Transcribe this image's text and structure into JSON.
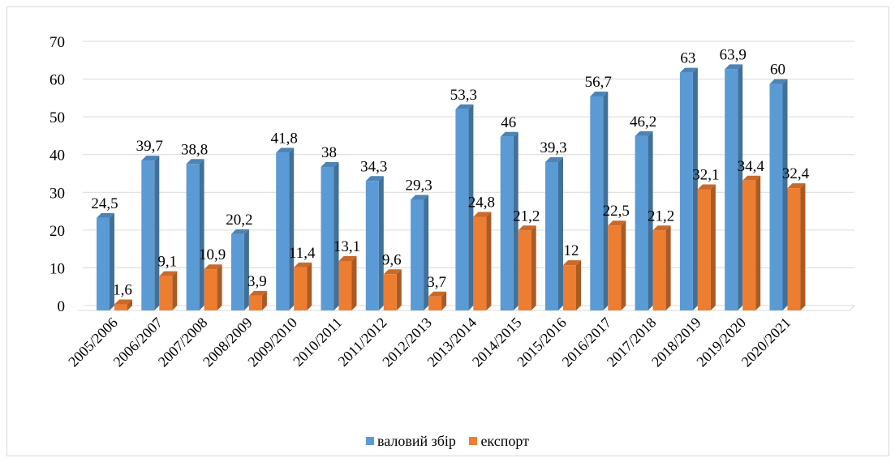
{
  "chart_data": {
    "type": "bar",
    "categories": [
      "2005/2006",
      "2006/2007",
      "2007/2008",
      "2008/2009",
      "2009/2010",
      "2010/2011",
      "2011/2012",
      "2012/2013",
      "2013/2014",
      "2014/2015",
      "2015/2016",
      "2016/2017",
      "2017/2018",
      "2018/2019",
      "2019/2020",
      "2020/2021"
    ],
    "series": [
      {
        "name": "валовий збір",
        "color": "#5b9bd5",
        "values": [
          24.5,
          39.7,
          38.8,
          20.2,
          41.8,
          38,
          34.3,
          29.3,
          53.3,
          46,
          39.3,
          56.7,
          46.2,
          63,
          63.9,
          60
        ],
        "labels": [
          "24,5",
          "39,7",
          "38,8",
          "20,2",
          "41,8",
          "38",
          "34,3",
          "29,3",
          "53,3",
          "46",
          "39,3",
          "56,7",
          "46,2",
          "63",
          "63,9",
          "60"
        ]
      },
      {
        "name": "експорт",
        "color": "#ed7d31",
        "values": [
          1.6,
          9.1,
          10.9,
          3.9,
          11.4,
          13.1,
          9.6,
          3.7,
          24.8,
          21.2,
          12,
          22.5,
          21.2,
          32.1,
          34.4,
          32.4
        ],
        "labels": [
          "1,6",
          "9,1",
          "10,9",
          "3,9",
          "11,4",
          "13,1",
          "9,6",
          "3,7",
          "24,8",
          "21,2",
          "12",
          "22,5",
          "21,2",
          "32,1",
          "34,4",
          "32,4"
        ]
      }
    ],
    "yticks": [
      "0",
      "10",
      "20",
      "30",
      "40",
      "50",
      "60",
      "70"
    ],
    "ylim": [
      0,
      70
    ],
    "grid": true,
    "legend_position": "bottom"
  }
}
